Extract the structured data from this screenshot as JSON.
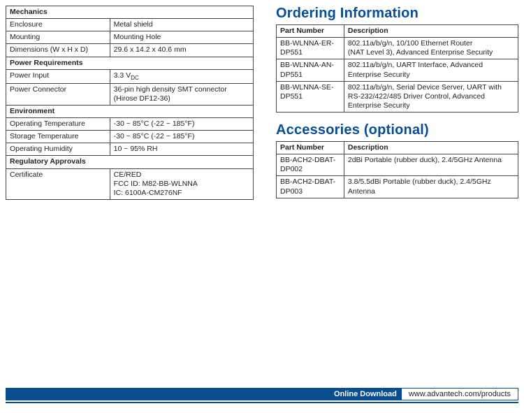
{
  "left": {
    "sections": [
      {
        "title": "Mechanics",
        "rows": [
          [
            "Enclosure",
            "Metal shield"
          ],
          [
            "Mounting",
            "Mounting Hole"
          ],
          [
            "Dimensions (W x H x D)",
            "29.6 x 14.2 x 40.6 mm"
          ]
        ]
      },
      {
        "title": "Power Requirements",
        "rows": [
          [
            "Power Input",
            "3.3 V__DC__"
          ],
          [
            "Power Connector",
            "36-pin high density SMT connector\n(Hirose DF12-36)"
          ]
        ]
      },
      {
        "title": "Environment",
        "rows": [
          [
            "Operating Temperature",
            "-30 ~ 85°C (-22 ~ 185°F)"
          ],
          [
            "Storage Temperature",
            "-30 ~ 85°C (-22 ~ 185°F)"
          ],
          [
            "Operating Humidity",
            "10 ~ 95% RH"
          ]
        ]
      },
      {
        "title": "Regulatory Approvals",
        "rows": [
          [
            "Certificate",
            "CE/RED\nFCC ID: M82-BB-WLNNA\nIC: 6100A-CM276NF"
          ]
        ]
      }
    ]
  },
  "right": {
    "ordering_title": "Ordering Information",
    "ordering_headers": [
      "Part Number",
      "Description"
    ],
    "ordering_rows": [
      [
        "BB-WLNNA-ER-DP551",
        "802.11a/b/g/n, 10/100 Ethernet Router\n(NAT Level 3), Advanced Enterprise Security"
      ],
      [
        "BB-WLNNA-AN-DP551",
        "802.11a/b/g/n, UART Interface, Advanced Enterprise Security"
      ],
      [
        "BB-WLNNA-SE-DP551",
        "802.11a/b/g/n, Serial Device Server, UART with RS-232/422/485 Driver Control, Advanced Enterprise Security"
      ]
    ],
    "acc_title": "Accessories (optional)",
    "acc_headers": [
      "Part Number",
      "Description"
    ],
    "acc_rows": [
      [
        "BB-ACH2-DBAT-DP002",
        "2dBi Portable (rubber duck), 2.4/5GHz Antenna"
      ],
      [
        "BB-ACH2-DBAT-DP003",
        "3.8/5.5dBi Portable (rubber duck), 2.4/5GHz Antenna"
      ]
    ]
  },
  "footer": {
    "label": "Online Download",
    "url": "www.advantech.com/products"
  },
  "style": {
    "accent": "#0a4d8f",
    "border": "#444444",
    "header_fontsize": 20,
    "body_fontsize": 10.5
  }
}
